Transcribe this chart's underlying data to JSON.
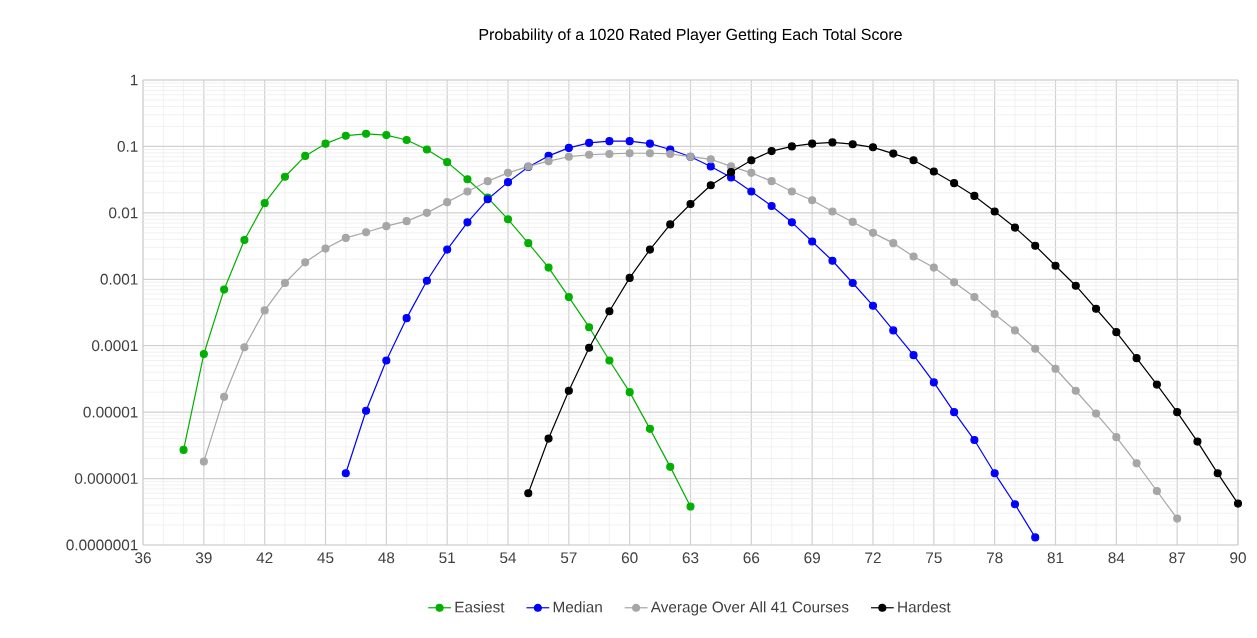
{
  "chart_data": {
    "type": "line",
    "title": "Probability of a 1020 Rated Player Getting Each Total Score",
    "log": "y",
    "grid": true,
    "legend": "bottom",
    "marker": "circle",
    "line_style": "solid",
    "xlim": [
      36,
      90
    ],
    "xticks": [
      36,
      39,
      42,
      45,
      48,
      51,
      54,
      57,
      60,
      63,
      66,
      69,
      72,
      75,
      78,
      81,
      84,
      87,
      90
    ],
    "ylim": [
      1e-07,
      1
    ],
    "yticks": [
      {
        "value": 1e-07,
        "label": "0.0000001"
      },
      {
        "value": 1e-06,
        "label": "0.000001"
      },
      {
        "value": 1e-05,
        "label": "0.00001"
      },
      {
        "value": 0.0001,
        "label": "0.0001"
      },
      {
        "value": 0.001,
        "label": "0.001"
      },
      {
        "value": 0.01,
        "label": "0.01"
      },
      {
        "value": 0.1,
        "label": "0.1"
      },
      {
        "value": 1,
        "label": "1"
      }
    ],
    "series": [
      {
        "name": "Easiest",
        "color": "#00b000",
        "x": [
          38,
          39,
          40,
          41,
          42,
          43,
          44,
          45,
          46,
          47,
          48,
          49,
          50,
          51,
          52,
          53,
          54,
          55,
          56,
          57,
          58,
          59,
          60,
          61,
          62,
          63
        ],
        "values": [
          2.7e-06,
          7.5e-05,
          0.0007,
          0.0039,
          0.014,
          0.035,
          0.072,
          0.11,
          0.145,
          0.155,
          0.148,
          0.125,
          0.09,
          0.058,
          0.032,
          0.017,
          0.008,
          0.0035,
          0.0015,
          0.00054,
          0.00019,
          6e-05,
          2e-05,
          5.6e-06,
          1.5e-06,
          3.8e-07
        ]
      },
      {
        "name": "Median",
        "color": "#0000ff",
        "x": [
          46,
          47,
          48,
          49,
          50,
          51,
          52,
          53,
          54,
          55,
          56,
          57,
          58,
          59,
          60,
          61,
          62,
          63,
          64,
          65,
          66,
          67,
          68,
          69,
          70,
          71,
          72,
          73,
          74,
          75,
          76,
          77,
          78,
          79,
          80
        ],
        "values": [
          1.2e-06,
          1.05e-05,
          6e-05,
          0.00026,
          0.00095,
          0.0028,
          0.0072,
          0.016,
          0.029,
          0.049,
          0.072,
          0.095,
          0.113,
          0.12,
          0.12,
          0.11,
          0.09,
          0.07,
          0.05,
          0.034,
          0.021,
          0.0127,
          0.0072,
          0.0037,
          0.0019,
          0.00088,
          0.0004,
          0.00017,
          7.2e-05,
          2.8e-05,
          1e-05,
          3.8e-06,
          1.2e-06,
          4.1e-07,
          1.3e-07
        ]
      },
      {
        "name": "Average Over All 41 Courses",
        "color": "#a6a6a6",
        "x": [
          39,
          40,
          41,
          42,
          43,
          44,
          45,
          46,
          47,
          48,
          49,
          50,
          51,
          52,
          53,
          54,
          55,
          56,
          57,
          58,
          59,
          60,
          61,
          62,
          63,
          64,
          65,
          66,
          67,
          68,
          69,
          70,
          71,
          72,
          73,
          74,
          75,
          76,
          77,
          78,
          79,
          80,
          81,
          82,
          83,
          84,
          85,
          86,
          87
        ],
        "values": [
          1.8e-06,
          1.7e-05,
          9.5e-05,
          0.00034,
          0.00088,
          0.0018,
          0.0029,
          0.0042,
          0.0051,
          0.0063,
          0.0075,
          0.01,
          0.0145,
          0.021,
          0.03,
          0.04,
          0.05,
          0.06,
          0.07,
          0.075,
          0.077,
          0.079,
          0.079,
          0.077,
          0.07,
          0.064,
          0.05,
          0.04,
          0.03,
          0.021,
          0.0155,
          0.0105,
          0.0073,
          0.005,
          0.0035,
          0.0022,
          0.0015,
          0.0009,
          0.00054,
          0.0003,
          0.00017,
          9e-05,
          4.5e-05,
          2.1e-05,
          9.5e-06,
          4.2e-06,
          1.7e-06,
          6.5e-07,
          2.5e-07
        ]
      },
      {
        "name": "Hardest",
        "color": "#000000",
        "x": [
          55,
          56,
          57,
          58,
          59,
          60,
          61,
          62,
          63,
          64,
          65,
          66,
          67,
          68,
          69,
          70,
          71,
          72,
          73,
          74,
          75,
          76,
          77,
          78,
          79,
          80,
          81,
          82,
          83,
          84,
          85,
          86,
          87,
          88,
          89,
          90
        ],
        "values": [
          6e-07,
          4e-06,
          2.1e-05,
          9.3e-05,
          0.00033,
          0.00105,
          0.0028,
          0.0067,
          0.0136,
          0.026,
          0.041,
          0.062,
          0.085,
          0.1,
          0.11,
          0.115,
          0.108,
          0.097,
          0.078,
          0.062,
          0.042,
          0.028,
          0.018,
          0.0105,
          0.006,
          0.0032,
          0.0016,
          0.0008,
          0.00036,
          0.00016,
          6.5e-05,
          2.6e-05,
          1e-05,
          3.6e-06,
          1.2e-06,
          4.2e-07
        ]
      }
    ]
  }
}
